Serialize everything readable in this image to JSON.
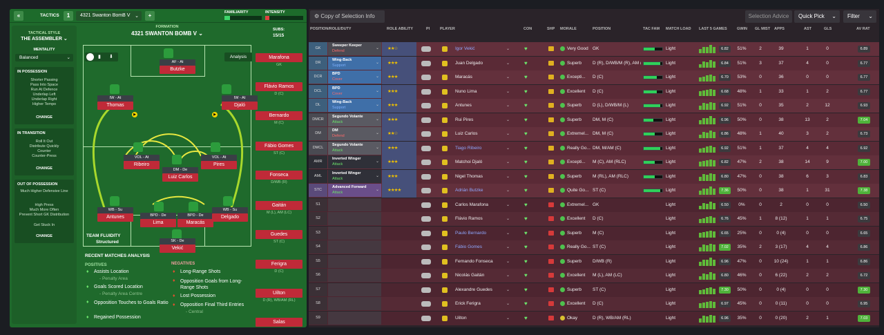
{
  "topbar": {
    "tactics_label": "TACTICS",
    "slot": "1",
    "tactic_name": "4321 Swanton BomB V",
    "familiarity": "FAMILIARITY",
    "intensity": "INTENSITY",
    "add": "+"
  },
  "side": {
    "style_label": "TACTICAL STYLE",
    "style": "THE ASSEMBLER",
    "mentality_label": "MENTALITY",
    "mentality": "Balanced",
    "boxes": [
      {
        "title": "IN POSSESSION",
        "items": [
          "Shorter Passing",
          "Pass Into Space",
          "Run At Defence",
          "Underlap Left",
          "Underlap Right",
          "Higher Tempo"
        ],
        "change": "CHANGE"
      },
      {
        "title": "IN TRANSITION",
        "items": [
          "Roll It Out",
          "Distribute Quickly",
          "Counter",
          "Counter-Press"
        ],
        "change": "CHANGE"
      },
      {
        "title": "OUT OF POSSESSION",
        "items": [
          "Much Higher Defensive Line",
          "High Press",
          "Much More Often",
          "Prevent Short GK Distribution",
          "Get Stuck In"
        ],
        "change": "CHANGE"
      }
    ]
  },
  "formation": {
    "label": "FORMATION",
    "name": "4321 SWANTON BOMB V",
    "subs_label": "SUBS:",
    "subs": "15/15",
    "analysis": "Analysis",
    "fluidity_label": "TEAM FLUIDITY",
    "fluidity": "Structured"
  },
  "pitch_players": [
    {
      "role": "AF - At",
      "name": "Butzke"
    },
    {
      "role": "IW - At",
      "name": "Thomas"
    },
    {
      "role": "IW - At",
      "name": "Djaló"
    },
    {
      "role": "VOL - At",
      "name": "Ribeiro"
    },
    {
      "role": "DM - De",
      "name": "Luiz Carlos"
    },
    {
      "role": "VOL - At",
      "name": "Pires"
    },
    {
      "role": "WB - Su",
      "name": "Antunes"
    },
    {
      "role": "BPD - De",
      "name": "Lima"
    },
    {
      "role": "BPD - De",
      "name": "Maracás"
    },
    {
      "role": "WB - Su",
      "name": "Delgado"
    },
    {
      "role": "SK - De",
      "name": "Vekić"
    }
  ],
  "subs": [
    {
      "name": "Marafona",
      "pos": "GK"
    },
    {
      "name": "Flávio Ramos",
      "pos": "D (C)"
    },
    {
      "name": "Bernardo",
      "pos": "M (C)"
    },
    {
      "name": "Fábio Gomes",
      "pos": "ST (C)"
    },
    {
      "name": "Fonseca",
      "pos": "D/WB (R)"
    },
    {
      "name": "Gaitán",
      "pos": "M (L), AM (LC)"
    },
    {
      "name": "Guedes",
      "pos": "ST (C)"
    },
    {
      "name": "Ferigra",
      "pos": "D (C)"
    },
    {
      "name": "Uilton",
      "pos": "D (R), WB/AM (RL)"
    },
    {
      "name": "Salas",
      "pos": ""
    }
  ],
  "analysis": {
    "title": "RECENT MATCHES ANALYSIS",
    "positives_label": "POSITIVES",
    "negatives_label": "NEGATIVES",
    "positives": [
      [
        "Assists Location",
        "- Penalty Area"
      ],
      [
        "Goals Scored Location",
        "- Penalty Area Centre"
      ],
      [
        "Opposition Touches to Goals Ratio",
        ""
      ],
      [
        "Regained Possession",
        ""
      ]
    ],
    "negatives": [
      [
        "Long-Range Shots",
        ""
      ],
      [
        "Opposition Goals from Long-Range Shots",
        ""
      ],
      [
        "Lost Possession",
        ""
      ],
      [
        "Opposition Final Third Entries",
        "- Central"
      ]
    ]
  },
  "right_header": {
    "view": "Copy of Selection Info",
    "advice": "Selection Advice",
    "quick": "Quick Pick",
    "filter": "Filter"
  },
  "columns": [
    "POSITION/ROLE/DUTY",
    "ROLE ABILITY",
    "PI",
    "PLAYER",
    "CON",
    "SHP",
    "MORALE",
    "POSITION",
    "TAC FAM",
    "MATCH LOAD",
    "LAST 5 GAMES",
    "GWIN",
    "GL MIST",
    "APPS",
    "AST",
    "GLS",
    "AV RAT"
  ],
  "rows": [
    {
      "pos": "GK",
      "role": "Sweeper Keeper",
      "duty": "Defend",
      "player": "Igor Vekić",
      "morale": "Very Good",
      "position": "GK",
      "load": "Light",
      "last5": "6.82",
      "gwin": "51%",
      "glm": "2",
      "apps": "39",
      "ast": "1",
      "gls": "0",
      "av": "6.89"
    },
    {
      "pos": "DR",
      "role": "Wing-Back",
      "duty": "Support",
      "player": "Juan Delgado",
      "morale": "Superb",
      "position": "D (R), D/WB/M (R), AM (RL)",
      "load": "Light",
      "last5": "6.84",
      "gwin": "51%",
      "glm": "3",
      "apps": "37",
      "ast": "4",
      "gls": "0",
      "av": "6.77"
    },
    {
      "pos": "DCR",
      "role": "BPD",
      "duty": "Cover",
      "player": "Maracás",
      "morale": "Excepti...",
      "position": "D (C)",
      "load": "Light",
      "last5": "6.70",
      "gwin": "53%",
      "glm": "0",
      "apps": "36",
      "ast": "0",
      "gls": "0",
      "av": "6.77"
    },
    {
      "pos": "DCL",
      "role": "BPD",
      "duty": "Cover",
      "player": "Nuno Lima",
      "morale": "Excellent",
      "position": "D (C)",
      "load": "Light",
      "last5": "6.68",
      "gwin": "48%",
      "glm": "1",
      "apps": "33",
      "ast": "1",
      "gls": "2",
      "av": "6.77"
    },
    {
      "pos": "DL",
      "role": "Wing-Back",
      "duty": "Support",
      "player": "Antunes",
      "morale": "Superb",
      "position": "D (L), D/WB/M (L)",
      "load": "Light",
      "last5": "6.92",
      "gwin": "51%",
      "glm": "0",
      "apps": "35",
      "ast": "2",
      "gls": "12",
      "av": "6.93"
    },
    {
      "pos": "DMCR",
      "role": "Segundo Volante",
      "duty": "Attack",
      "player": "Rui Pires",
      "morale": "Superb",
      "position": "DM, M (C)",
      "load": "Light",
      "last5": "6.96",
      "gwin": "50%",
      "glm": "0",
      "apps": "38",
      "ast": "13",
      "gls": "2",
      "av": "7.04"
    },
    {
      "pos": "DM",
      "role": "DM",
      "duty": "Defend",
      "player": "Luiz Carlos",
      "morale": "Extremel...",
      "position": "DM, M (C)",
      "load": "Light",
      "last5": "6.86",
      "gwin": "48%",
      "glm": "1",
      "apps": "40",
      "ast": "3",
      "gls": "2",
      "av": "6.73"
    },
    {
      "pos": "DMCL",
      "role": "Segundo Volante",
      "duty": "Attack",
      "player": "Tiago Ribeiro",
      "morale": "Really Go...",
      "position": "DM, M/AM (C)",
      "load": "Light",
      "last5": "6.92",
      "gwin": "51%",
      "glm": "1",
      "apps": "37",
      "ast": "4",
      "gls": "4",
      "av": "6.92"
    },
    {
      "pos": "AMR",
      "role": "Inverted Winger",
      "duty": "Attack",
      "player": "Matchoi Djaló",
      "morale": "Excepti...",
      "position": "M (C), AM (RLC)",
      "load": "Light",
      "last5": "6.82",
      "gwin": "47%",
      "glm": "2",
      "apps": "38",
      "ast": "14",
      "gls": "9",
      "av": "7.00"
    },
    {
      "pos": "AML",
      "role": "Inverted Winger",
      "duty": "Attack",
      "player": "Nigel Thomas",
      "morale": "Superb",
      "position": "M (RL), AM (RLC)",
      "load": "Light",
      "last5": "6.80",
      "gwin": "47%",
      "glm": "0",
      "apps": "38",
      "ast": "6",
      "gls": "3",
      "av": "6.83"
    },
    {
      "pos": "STC",
      "role": "Advanced Forward",
      "duty": "Attack",
      "player": "Adrián Butzke",
      "morale": "Quite Go...",
      "position": "ST (C)",
      "load": "Light",
      "last5": "7.36",
      "gwin": "50%",
      "glm": "0",
      "apps": "38",
      "ast": "1",
      "gls": "31",
      "av": "7.38"
    },
    {
      "pos": "S1",
      "role": "",
      "duty": "",
      "player": "Carlos Marafona",
      "morale": "Extremel...",
      "position": "GK",
      "load": "Light",
      "last5": "6.50",
      "gwin": "0%",
      "glm": "0",
      "apps": "2",
      "ast": "0",
      "gls": "0",
      "av": "6.50"
    },
    {
      "pos": "S2",
      "role": "",
      "duty": "",
      "player": "Flávio Ramos",
      "morale": "Excellent",
      "position": "D (C)",
      "load": "Light",
      "last5": "6.76",
      "gwin": "45%",
      "glm": "1",
      "apps": "8 (12)",
      "ast": "1",
      "gls": "1",
      "av": "6.75"
    },
    {
      "pos": "S3",
      "role": "",
      "duty": "",
      "player": "Paulo Bernardo",
      "morale": "Superb",
      "position": "M (C)",
      "load": "Light",
      "last5": "6.65",
      "gwin": "25%",
      "glm": "0",
      "apps": "0 (4)",
      "ast": "0",
      "gls": "0",
      "av": "6.65"
    },
    {
      "pos": "S4",
      "role": "",
      "duty": "",
      "player": "Fábio Gomes",
      "morale": "Really Go...",
      "position": "ST (C)",
      "load": "Light",
      "last5": "7.02",
      "gwin": "35%",
      "glm": "2",
      "apps": "3 (17)",
      "ast": "4",
      "gls": "4",
      "av": "6.86"
    },
    {
      "pos": "S5",
      "role": "",
      "duty": "",
      "player": "Fernando Fonseca",
      "morale": "Superb",
      "position": "D/WB (R)",
      "load": "Light",
      "last5": "6.96",
      "gwin": "47%",
      "glm": "0",
      "apps": "10 (24)",
      "ast": "1",
      "gls": "1",
      "av": "6.86"
    },
    {
      "pos": "S6",
      "role": "",
      "duty": "",
      "player": "Nicolás Gaitán",
      "morale": "Excellent",
      "position": "M (L), AM (LC)",
      "load": "Light",
      "last5": "6.80",
      "gwin": "46%",
      "glm": "0",
      "apps": "6 (22)",
      "ast": "2",
      "gls": "2",
      "av": "6.72"
    },
    {
      "pos": "S7",
      "role": "",
      "duty": "",
      "player": "Alexandre Guedes",
      "morale": "Superb",
      "position": "ST (C)",
      "load": "Light",
      "last5": "7.30",
      "gwin": "50%",
      "glm": "0",
      "apps": "0 (4)",
      "ast": "0",
      "gls": "0",
      "av": "7.30"
    },
    {
      "pos": "S8",
      "role": "",
      "duty": "",
      "player": "Erick Ferigra",
      "morale": "Excellent",
      "position": "D (C)",
      "load": "Light",
      "last5": "6.97",
      "gwin": "45%",
      "glm": "0",
      "apps": "0 (11)",
      "ast": "0",
      "gls": "0",
      "av": "6.95"
    },
    {
      "pos": "S9",
      "role": "",
      "duty": "",
      "player": "Uilton",
      "morale": "Okay",
      "position": "D (R), WB/AM (RL)",
      "load": "Light",
      "last5": "6.96",
      "gwin": "35%",
      "glm": "0",
      "apps": "0 (20)",
      "ast": "2",
      "gls": "1",
      "av": "7.03"
    }
  ]
}
